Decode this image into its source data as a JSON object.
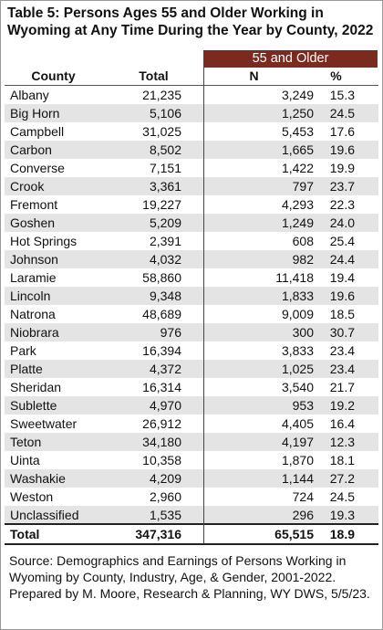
{
  "title": "Table 5: Persons Ages 55 and Older Working in Wyoming at Any Time During the Year by County, 2022",
  "table": {
    "group_header": "55 and Older",
    "columns": [
      "County",
      "Total",
      "N",
      "%"
    ],
    "rows": [
      [
        "Albany",
        "21,235",
        "3,249",
        "15.3"
      ],
      [
        "Big Horn",
        "5,106",
        "1,250",
        "24.5"
      ],
      [
        "Campbell",
        "31,025",
        "5,453",
        "17.6"
      ],
      [
        "Carbon",
        "8,502",
        "1,665",
        "19.6"
      ],
      [
        "Converse",
        "7,151",
        "1,422",
        "19.9"
      ],
      [
        "Crook",
        "3,361",
        "797",
        "23.7"
      ],
      [
        "Fremont",
        "19,227",
        "4,293",
        "22.3"
      ],
      [
        "Goshen",
        "5,209",
        "1,249",
        "24.0"
      ],
      [
        "Hot Springs",
        "2,391",
        "608",
        "25.4"
      ],
      [
        "Johnson",
        "4,032",
        "982",
        "24.4"
      ],
      [
        "Laramie",
        "58,860",
        "11,418",
        "19.4"
      ],
      [
        "Lincoln",
        "9,348",
        "1,833",
        "19.6"
      ],
      [
        "Natrona",
        "48,689",
        "9,009",
        "18.5"
      ],
      [
        "Niobrara",
        "976",
        "300",
        "30.7"
      ],
      [
        "Park",
        "16,394",
        "3,833",
        "23.4"
      ],
      [
        "Platte",
        "4,372",
        "1,025",
        "23.4"
      ],
      [
        "Sheridan",
        "16,314",
        "3,540",
        "21.7"
      ],
      [
        "Sublette",
        "4,970",
        "953",
        "19.2"
      ],
      [
        "Sweetwater",
        "26,912",
        "4,405",
        "16.4"
      ],
      [
        "Teton",
        "34,180",
        "4,197",
        "12.3"
      ],
      [
        "Uinta",
        "10,358",
        "1,870",
        "18.1"
      ],
      [
        "Washakie",
        "4,209",
        "1,144",
        "27.2"
      ],
      [
        "Weston",
        "2,960",
        "724",
        "24.5"
      ],
      [
        "Unclassified",
        "1,535",
        "296",
        "19.3"
      ]
    ],
    "total": [
      "Total",
      "347,316",
      "65,515",
      "18.9"
    ]
  },
  "source": [
    "Source: Demographics and Earnings of Persons Working in Wyoming by County, Industry, Age, & Gender, 2001-2022.",
    "Prepared by M. Moore, Research & Planning, WY DWS, 5/5/23."
  ]
}
